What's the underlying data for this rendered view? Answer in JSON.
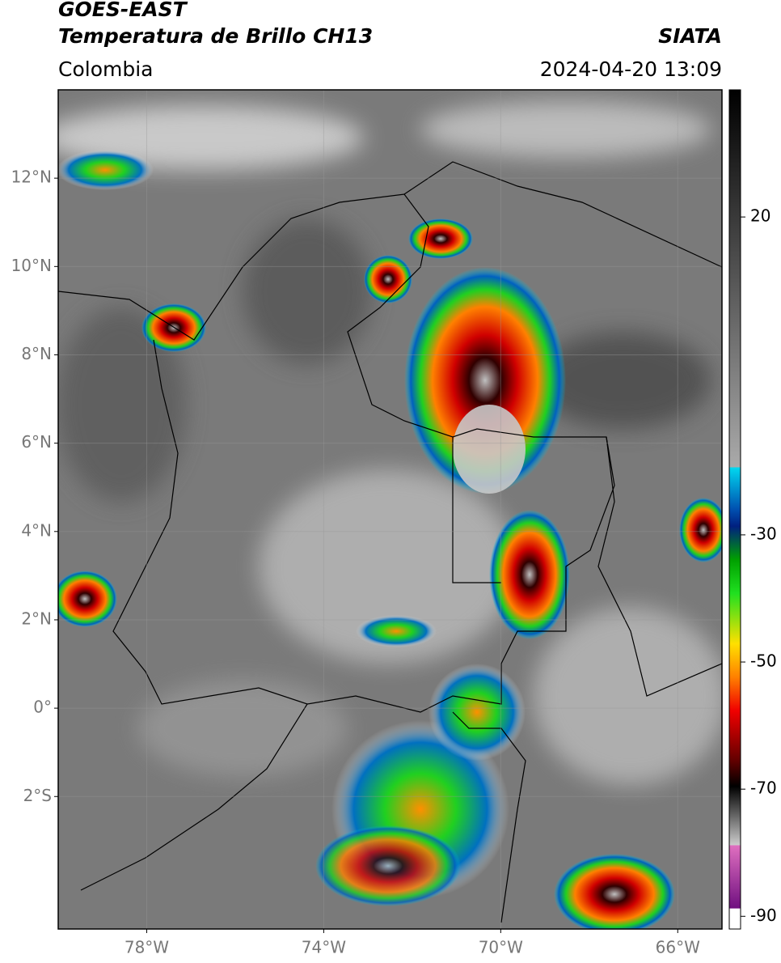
{
  "header": {
    "satellite": "GOES-EAST",
    "product": "Temperatura de Brillo CH13",
    "agency": "SIATA",
    "region": "Colombia",
    "datetime": "2024-04-20 13:09"
  },
  "map": {
    "xlim": [
      -80,
      -65
    ],
    "ylim": [
      -5,
      14
    ],
    "xticks": [
      {
        "value": -78,
        "label": "78°W"
      },
      {
        "value": -74,
        "label": "74°W"
      },
      {
        "value": -70,
        "label": "70°W"
      },
      {
        "value": -66,
        "label": "66°W"
      }
    ],
    "yticks": [
      {
        "value": 12,
        "label": "12°N"
      },
      {
        "value": 10,
        "label": "10°N"
      },
      {
        "value": 8,
        "label": "8°N"
      },
      {
        "value": 6,
        "label": "6°N"
      },
      {
        "value": 4,
        "label": "4°N"
      },
      {
        "value": 2,
        "label": "2°N"
      },
      {
        "value": 0,
        "label": "0°"
      },
      {
        "value": -2,
        "label": "2°S"
      }
    ],
    "grid": true
  },
  "colorbar": {
    "lim": [
      40,
      -92
    ],
    "ticks": [
      20,
      -30,
      -50,
      -70,
      -90
    ]
  }
}
